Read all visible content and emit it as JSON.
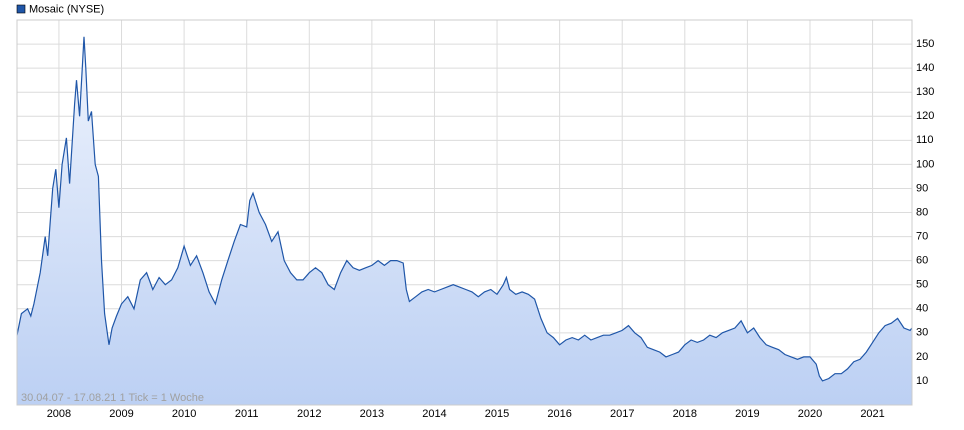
{
  "chart_data": {
    "type": "area",
    "annotation": "30.04.07 - 17.08.21   1 Tick = 1 Woche",
    "x": [
      2007.33,
      2007.4,
      2007.5,
      2007.55,
      2007.6,
      2007.7,
      2007.78,
      2007.82,
      2007.9,
      2007.95,
      2008.0,
      2008.05,
      2008.12,
      2008.17,
      2008.25,
      2008.28,
      2008.33,
      2008.4,
      2008.43,
      2008.47,
      2008.52,
      2008.58,
      2008.63,
      2008.68,
      2008.73,
      2008.8,
      2008.85,
      2008.92,
      2009.0,
      2009.1,
      2009.2,
      2009.3,
      2009.4,
      2009.5,
      2009.6,
      2009.7,
      2009.8,
      2009.9,
      2010.0,
      2010.1,
      2010.2,
      2010.3,
      2010.4,
      2010.5,
      2010.6,
      2010.7,
      2010.8,
      2010.9,
      2011.0,
      2011.05,
      2011.1,
      2011.2,
      2011.3,
      2011.4,
      2011.5,
      2011.6,
      2011.7,
      2011.8,
      2011.9,
      2012.0,
      2012.1,
      2012.2,
      2012.3,
      2012.4,
      2012.5,
      2012.6,
      2012.7,
      2012.8,
      2012.9,
      2013.0,
      2013.1,
      2013.2,
      2013.3,
      2013.4,
      2013.5,
      2013.55,
      2013.6,
      2013.7,
      2013.8,
      2013.9,
      2014.0,
      2014.1,
      2014.2,
      2014.3,
      2014.4,
      2014.5,
      2014.6,
      2014.7,
      2014.8,
      2014.9,
      2015.0,
      2015.1,
      2015.15,
      2015.2,
      2015.3,
      2015.4,
      2015.5,
      2015.6,
      2015.7,
      2015.8,
      2015.9,
      2016.0,
      2016.1,
      2016.2,
      2016.3,
      2016.4,
      2016.5,
      2016.6,
      2016.7,
      2016.8,
      2016.9,
      2017.0,
      2017.1,
      2017.2,
      2017.3,
      2017.4,
      2017.5,
      2017.6,
      2017.7,
      2017.8,
      2017.9,
      2018.0,
      2018.1,
      2018.2,
      2018.3,
      2018.4,
      2018.5,
      2018.6,
      2018.7,
      2018.8,
      2018.9,
      2019.0,
      2019.1,
      2019.2,
      2019.3,
      2019.4,
      2019.5,
      2019.6,
      2019.7,
      2019.8,
      2019.9,
      2020.0,
      2020.1,
      2020.15,
      2020.2,
      2020.3,
      2020.4,
      2020.5,
      2020.6,
      2020.7,
      2020.8,
      2020.9,
      2021.0,
      2021.1,
      2021.2,
      2021.3,
      2021.4,
      2021.5,
      2021.6,
      2021.63
    ],
    "series": [
      {
        "name": "Mosaic (NYSE)",
        "color": "#1f56a8",
        "values": [
          29,
          38,
          40,
          37,
          42,
          55,
          70,
          62,
          90,
          98,
          82,
          100,
          111,
          92,
          125,
          135,
          120,
          153,
          140,
          118,
          122,
          100,
          95,
          60,
          38,
          25,
          32,
          37,
          42,
          45,
          40,
          52,
          55,
          48,
          53,
          50,
          52,
          57,
          66,
          58,
          62,
          55,
          47,
          42,
          52,
          60,
          68,
          75,
          74,
          85,
          88,
          80,
          75,
          68,
          72,
          60,
          55,
          52,
          52,
          55,
          57,
          55,
          50,
          48,
          55,
          60,
          57,
          56,
          57,
          58,
          60,
          58,
          60,
          60,
          59,
          48,
          43,
          45,
          47,
          48,
          47,
          48,
          49,
          50,
          49,
          48,
          47,
          45,
          47,
          48,
          46,
          50,
          53,
          48,
          46,
          47,
          46,
          44,
          36,
          30,
          28,
          25,
          27,
          28,
          27,
          29,
          27,
          28,
          29,
          29,
          30,
          31,
          33,
          30,
          28,
          24,
          23,
          22,
          20,
          21,
          22,
          25,
          27,
          26,
          27,
          29,
          28,
          30,
          31,
          32,
          35,
          30,
          32,
          28,
          25,
          24,
          23,
          21,
          20,
          19,
          20,
          20,
          17,
          12,
          10,
          11,
          13,
          13,
          15,
          18,
          19,
          22,
          26,
          30,
          33,
          34,
          36,
          32,
          31,
          32
        ]
      }
    ],
    "xlim": [
      2007.33,
      2021.63
    ],
    "xticks": [
      2008,
      2009,
      2010,
      2011,
      2012,
      2013,
      2014,
      2015,
      2016,
      2017,
      2018,
      2019,
      2020,
      2021
    ],
    "ylim": [
      0,
      160
    ],
    "yticks": [
      10,
      20,
      30,
      40,
      50,
      60,
      70,
      80,
      90,
      100,
      110,
      120,
      130,
      140,
      150
    ],
    "grid": true,
    "legend": "top-left"
  }
}
